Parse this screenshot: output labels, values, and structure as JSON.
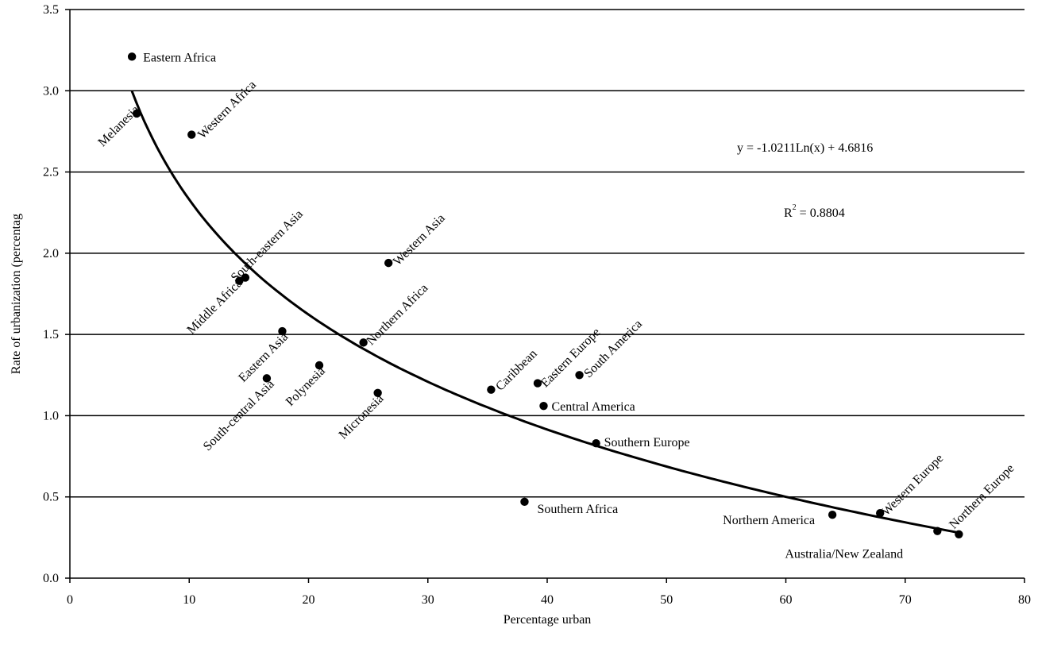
{
  "chart_data": {
    "type": "scatter",
    "title": "",
    "xlabel": "Percentage urban",
    "ylabel": "Rate of urbanization (percentag",
    "xlim": [
      0,
      80
    ],
    "ylim": [
      0,
      3.5
    ],
    "x_ticks": [
      "0",
      "10",
      "20",
      "30",
      "40",
      "50",
      "60",
      "70",
      "80"
    ],
    "y_ticks": [
      "0.0",
      "0.5",
      "1.0",
      "1.5",
      "2.0",
      "2.5",
      "3.0",
      "3.5"
    ],
    "grid": "horizontal",
    "points": [
      {
        "label": "Eastern Africa",
        "x": 5.2,
        "y": 3.21
      },
      {
        "label": "Melanesia",
        "x": 5.6,
        "y": 2.86
      },
      {
        "label": "Western Africa",
        "x": 10.2,
        "y": 2.73
      },
      {
        "label": "Middle Africa",
        "x": 14.2,
        "y": 1.83
      },
      {
        "label": "South-eastern Asia",
        "x": 14.7,
        "y": 1.85
      },
      {
        "label": "Western Asia",
        "x": 26.7,
        "y": 1.94
      },
      {
        "label": "Eastern Asia",
        "x": 17.8,
        "y": 1.52
      },
      {
        "label": "Northern Africa",
        "x": 24.6,
        "y": 1.45
      },
      {
        "label": "South-central Asia",
        "x": 16.5,
        "y": 1.23
      },
      {
        "label": "Polynesia",
        "x": 20.9,
        "y": 1.31
      },
      {
        "label": "Micronesia",
        "x": 25.8,
        "y": 1.14
      },
      {
        "label": "Caribbean",
        "x": 35.3,
        "y": 1.16
      },
      {
        "label": "Eastern Europe",
        "x": 39.2,
        "y": 1.2
      },
      {
        "label": "South America",
        "x": 42.7,
        "y": 1.25
      },
      {
        "label": "Central America",
        "x": 39.7,
        "y": 1.06
      },
      {
        "label": "Southern Europe",
        "x": 44.1,
        "y": 0.83
      },
      {
        "label": "Southern Africa",
        "x": 38.1,
        "y": 0.47
      },
      {
        "label": "Northern America",
        "x": 63.9,
        "y": 0.39
      },
      {
        "label": "Western Europe",
        "x": 67.9,
        "y": 0.4
      },
      {
        "label": "Australia/New Zealand",
        "x": 72.7,
        "y": 0.29
      },
      {
        "label": "Northern Europe",
        "x": 74.5,
        "y": 0.27
      }
    ],
    "trendline": {
      "type": "logarithmic",
      "a": -1.0211,
      "b": 4.6816,
      "x_range": [
        5.2,
        74.5
      ],
      "equation": "y = -1.0211Ln(x) + 4.6816",
      "r2_label": "R",
      "r2_sup": "2",
      "r2_value": " = 0.8804"
    }
  }
}
